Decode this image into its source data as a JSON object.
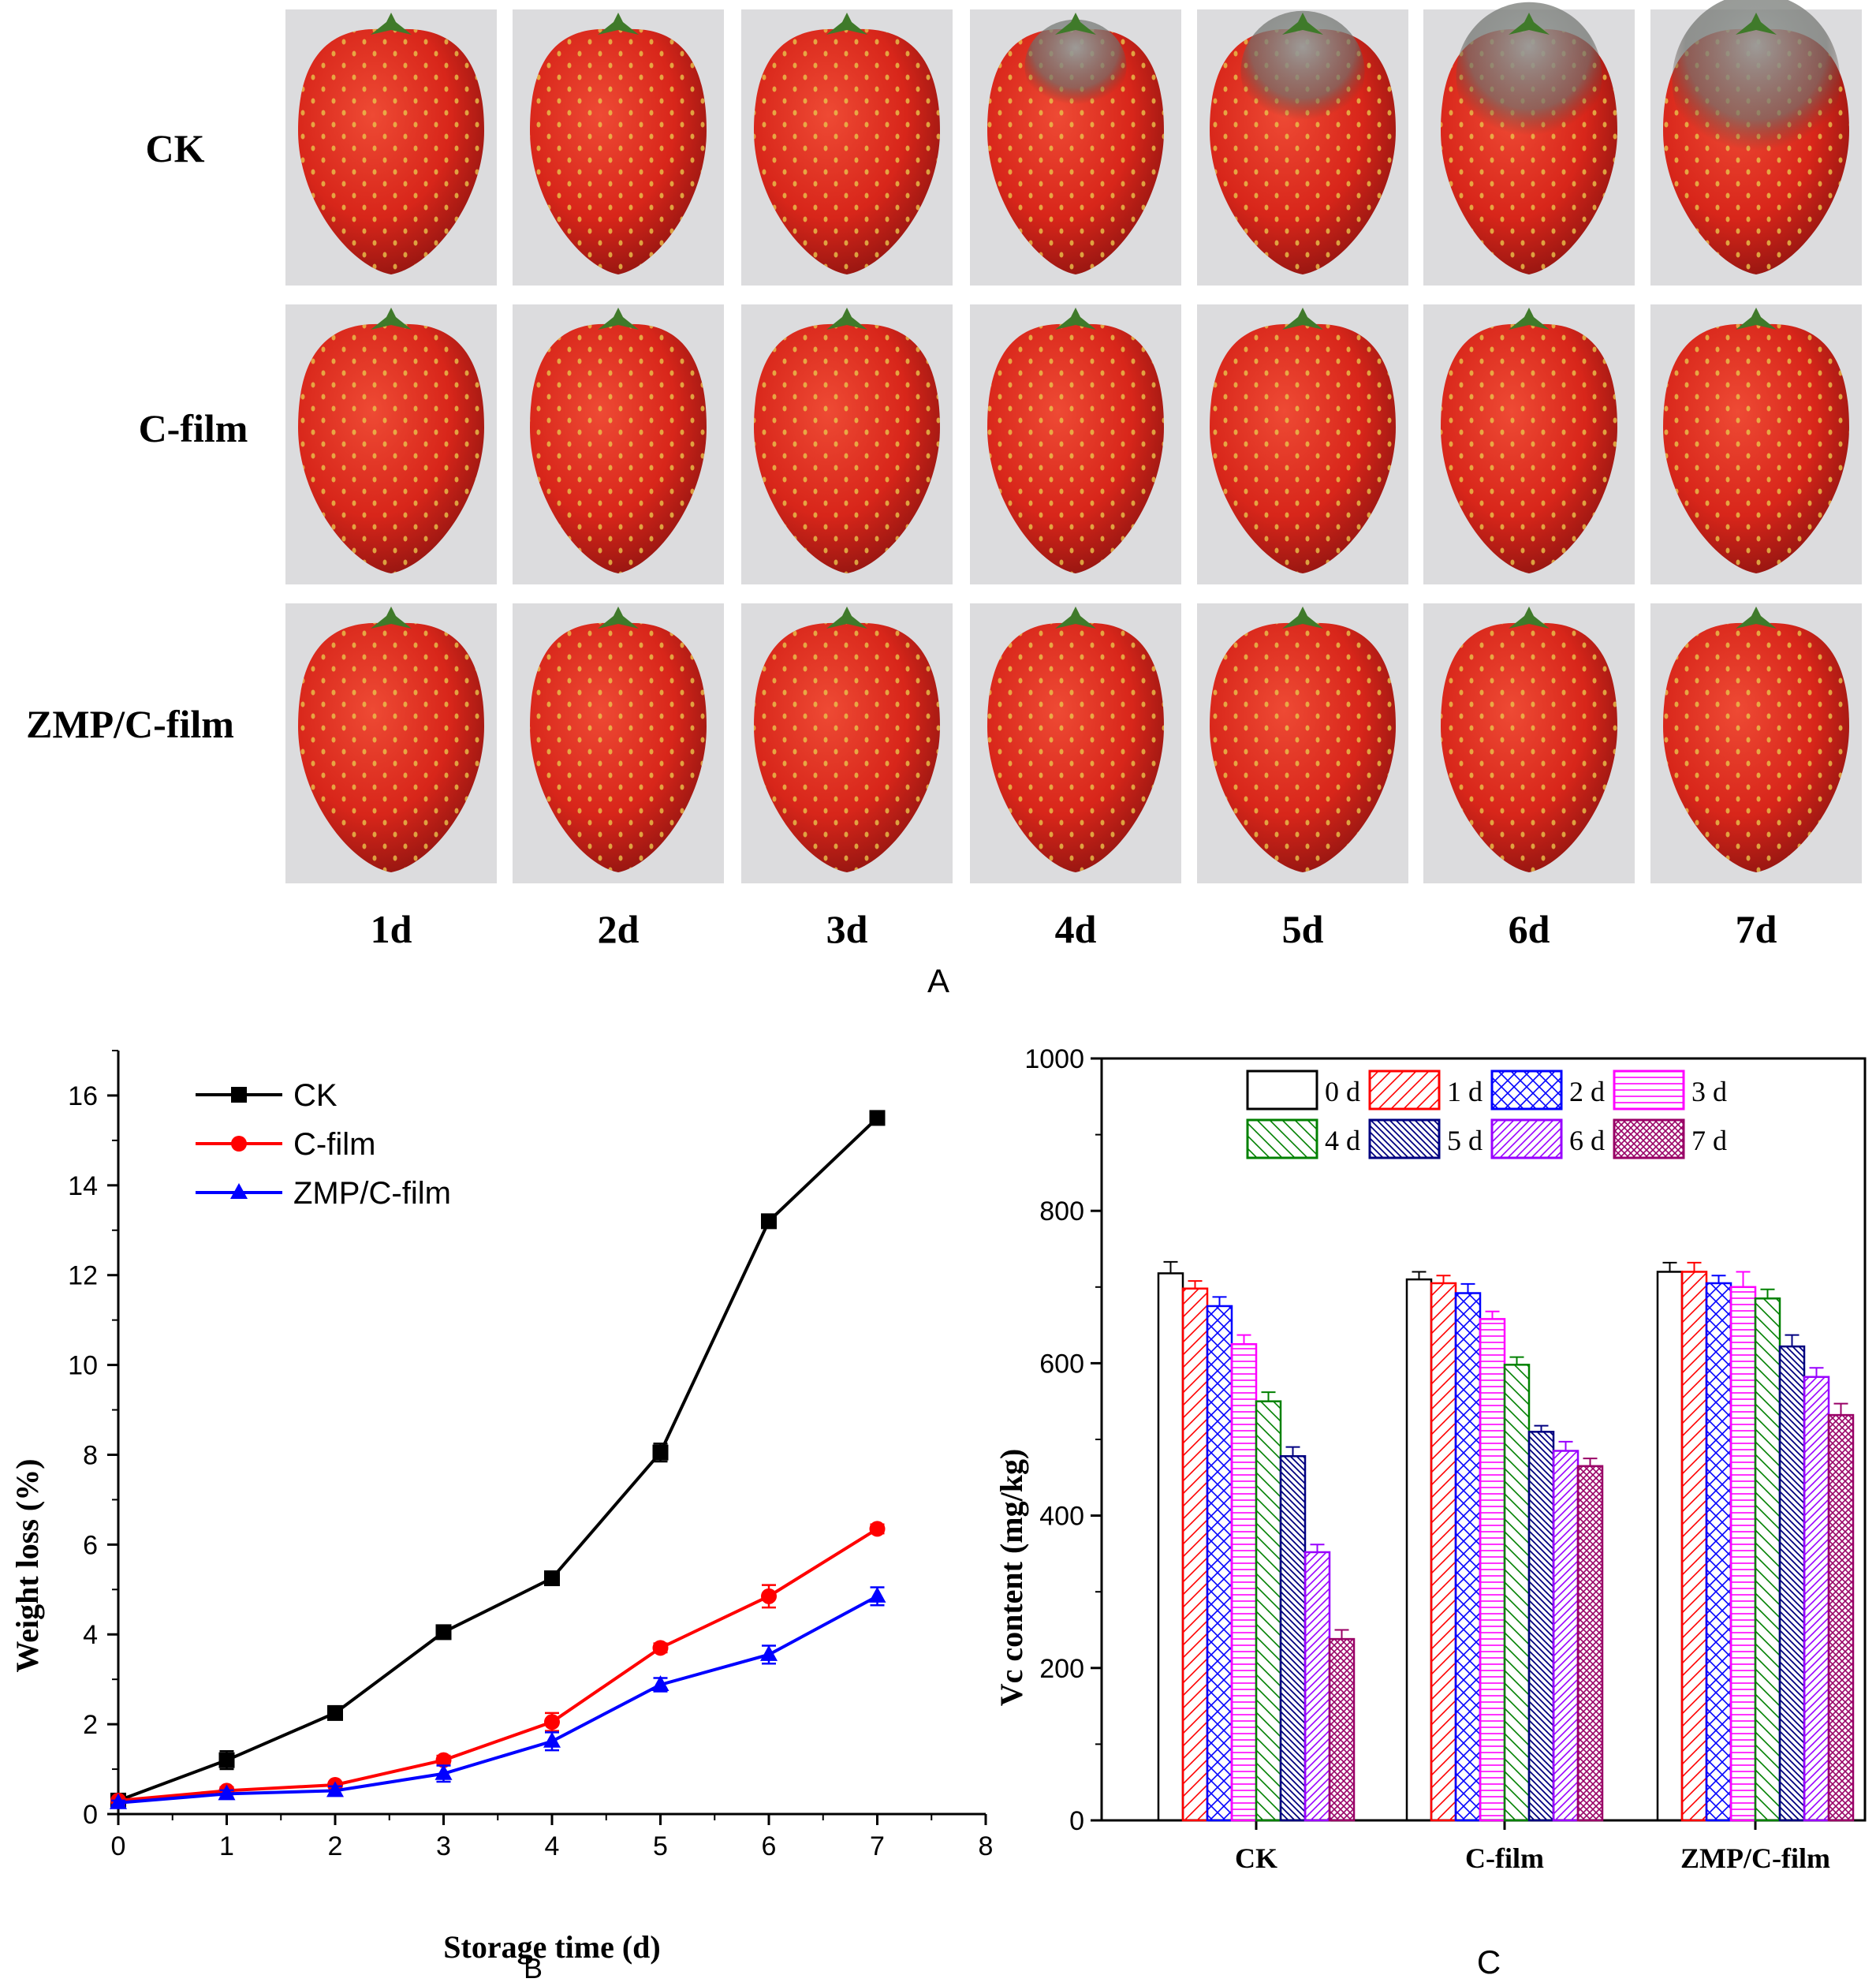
{
  "panel_a": {
    "label": "A",
    "row_labels": [
      "CK",
      "C-film",
      "ZMP/C-film"
    ],
    "day_labels": [
      "1d",
      "2d",
      "3d",
      "4d",
      "5d",
      "6d",
      "7d"
    ],
    "photo_content": "strawberry",
    "colors": {
      "strawberry": "#d8261a",
      "photo_bg": "#dcdcde",
      "leaf": "#3f7a2a",
      "mold": "#8a8f8c"
    }
  },
  "chart_data": [
    {
      "type": "line",
      "panel_label": "B",
      "title": "",
      "xlabel": "Storage time (d)",
      "ylabel": "Weight loss (%)",
      "xlim": [
        0,
        8
      ],
      "ylim": [
        0,
        17
      ],
      "xticks": [
        "0",
        "1",
        "2",
        "3",
        "4",
        "5",
        "6",
        "7",
        "8"
      ],
      "yticks": [
        "0",
        "2",
        "4",
        "6",
        "8",
        "10",
        "12",
        "14",
        "16"
      ],
      "x": [
        0,
        1,
        2,
        3,
        4,
        5,
        6,
        7
      ],
      "legend_position": "top-left",
      "series": [
        {
          "name": "CK",
          "color": "#000000",
          "marker": "square",
          "values": [
            0.3,
            1.2,
            2.25,
            4.05,
            5.25,
            8.05,
            13.2,
            15.5
          ],
          "errors": [
            0.05,
            0.2,
            0.1,
            0.1,
            0.08,
            0.2,
            0.12,
            0.1
          ]
        },
        {
          "name": "C-film",
          "color": "#ff0000",
          "marker": "circle",
          "values": [
            0.3,
            0.52,
            0.65,
            1.2,
            2.05,
            3.7,
            4.85,
            6.35
          ],
          "errors": [
            0.05,
            0.08,
            0.05,
            0.1,
            0.2,
            0.1,
            0.25,
            0.1
          ]
        },
        {
          "name": "ZMP/C-film",
          "color": "#0000ff",
          "marker": "triangle",
          "values": [
            0.25,
            0.45,
            0.52,
            0.9,
            1.62,
            2.88,
            3.55,
            4.85
          ],
          "errors": [
            0.05,
            0.08,
            0.1,
            0.18,
            0.2,
            0.15,
            0.2,
            0.2
          ]
        }
      ]
    },
    {
      "type": "bar",
      "panel_label": "C",
      "title": "",
      "xlabel": "",
      "ylabel": "Vc content (mg/kg)",
      "ylim": [
        0,
        1000
      ],
      "yticks": [
        "0",
        "200",
        "400",
        "600",
        "800",
        "1000"
      ],
      "categories": [
        "CK",
        "C-film",
        "ZMP/C-film"
      ],
      "legend_position": "top-center",
      "series": [
        {
          "name": "0 d",
          "color": "#000000",
          "pattern": "none",
          "values": [
            718,
            710,
            720
          ],
          "errors": [
            15,
            10,
            12
          ]
        },
        {
          "name": "1 d",
          "color": "#ff0000",
          "pattern": "diag-up",
          "values": [
            698,
            705,
            720
          ],
          "errors": [
            10,
            10,
            12
          ]
        },
        {
          "name": "2 d",
          "color": "#0000ff",
          "pattern": "cross",
          "values": [
            675,
            692,
            705
          ],
          "errors": [
            12,
            12,
            10
          ]
        },
        {
          "name": "3 d",
          "color": "#ff00ff",
          "pattern": "horizontal",
          "values": [
            625,
            658,
            700
          ],
          "errors": [
            12,
            10,
            20
          ]
        },
        {
          "name": "4 d",
          "color": "#008000",
          "pattern": "diag-down",
          "values": [
            550,
            598,
            685
          ],
          "errors": [
            12,
            10,
            12
          ]
        },
        {
          "name": "5 d",
          "color": "#000080",
          "pattern": "diag-down-dense",
          "values": [
            478,
            510,
            622
          ],
          "errors": [
            12,
            8,
            15
          ]
        },
        {
          "name": "6 d",
          "color": "#9900ff",
          "pattern": "diag-up-dense",
          "values": [
            352,
            485,
            582
          ],
          "errors": [
            10,
            12,
            12
          ]
        },
        {
          "name": "7 d",
          "color": "#990066",
          "pattern": "crosshatch-dense",
          "values": [
            238,
            465,
            532
          ],
          "errors": [
            12,
            10,
            15
          ]
        }
      ]
    }
  ]
}
